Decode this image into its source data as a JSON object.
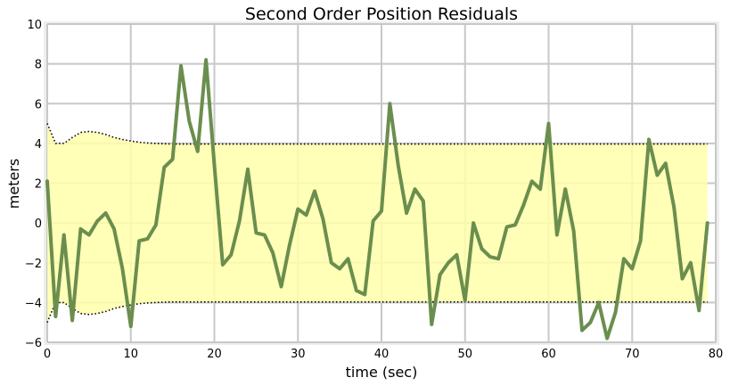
{
  "chart_data": {
    "type": "line",
    "title": "Second Order Position Residuals",
    "xlabel": "time (sec)",
    "ylabel": "meters",
    "xlim": [
      0,
      80
    ],
    "ylim": [
      -6,
      10
    ],
    "xticks": [
      0,
      10,
      20,
      30,
      40,
      50,
      60,
      70,
      80
    ],
    "yticks": [
      -6,
      -4,
      -2,
      0,
      2,
      4,
      6,
      8,
      10
    ],
    "grid": true,
    "colors": {
      "residual": "#6b8e4e",
      "band_fill": "#ffffaa",
      "band_edge": "#000000",
      "grid": "#c8c8c8",
      "axes_border": "#eeeeee"
    },
    "x": [
      0,
      1,
      2,
      3,
      4,
      5,
      6,
      7,
      8,
      9,
      10,
      11,
      12,
      13,
      14,
      15,
      16,
      17,
      18,
      19,
      20,
      21,
      22,
      23,
      24,
      25,
      26,
      27,
      28,
      29,
      30,
      31,
      32,
      33,
      34,
      35,
      36,
      37,
      38,
      39,
      40,
      41,
      42,
      43,
      44,
      45,
      46,
      47,
      48,
      49,
      50,
      51,
      52,
      53,
      54,
      55,
      56,
      57,
      58,
      59,
      60,
      61,
      62,
      63,
      64,
      65,
      66,
      67,
      68,
      69,
      70,
      71,
      72,
      73,
      74,
      75,
      76,
      77,
      78,
      79
    ],
    "series": [
      {
        "values": [
          2.1,
          -4.7,
          -0.6,
          -4.9,
          -0.3,
          -0.6,
          0.1,
          0.5,
          -0.3,
          -2.3,
          -5.2,
          -0.9,
          -0.8,
          -0.1,
          2.8,
          3.2,
          7.9,
          5.1,
          3.6,
          8.2,
          2.9,
          -2.1,
          -1.6,
          0.1,
          2.7,
          -0.5,
          -0.6,
          -1.5,
          -3.2,
          -1.1,
          0.7,
          0.4,
          1.6,
          0.2,
          -2.0,
          -2.3,
          -1.8,
          -3.4,
          -3.6,
          0.1,
          0.6,
          6.0,
          2.9,
          0.5,
          1.7,
          1.1,
          -5.1,
          -2.6,
          -2.0,
          -1.6,
          -3.9,
          0.0,
          -1.3,
          -1.7,
          -1.8,
          -0.2,
          -0.1,
          0.9,
          2.1,
          1.7,
          5.0,
          -0.6,
          1.7,
          -0.4,
          -5.4,
          -5.0,
          -4.0,
          -5.8,
          -4.5,
          -1.8,
          -2.3,
          -0.9,
          4.2,
          2.4,
          3.0,
          0.8,
          -2.8,
          -2.0,
          -4.4,
          0.0
        ]
      }
    ],
    "band": {
      "x": [
        0,
        1,
        2,
        3,
        4,
        5,
        6,
        7,
        8,
        9,
        10,
        11,
        12,
        13,
        14,
        15,
        16,
        17,
        18,
        19,
        20,
        25,
        30,
        40,
        50,
        60,
        70,
        79
      ],
      "upper": [
        5.0,
        4.0,
        4.0,
        4.3,
        4.55,
        4.6,
        4.55,
        4.45,
        4.3,
        4.2,
        4.12,
        4.06,
        4.02,
        4.0,
        3.98,
        3.97,
        3.97,
        3.97,
        3.97,
        3.97,
        3.97,
        3.97,
        3.97,
        3.97,
        3.97,
        3.97,
        3.97,
        3.97
      ]
    }
  }
}
